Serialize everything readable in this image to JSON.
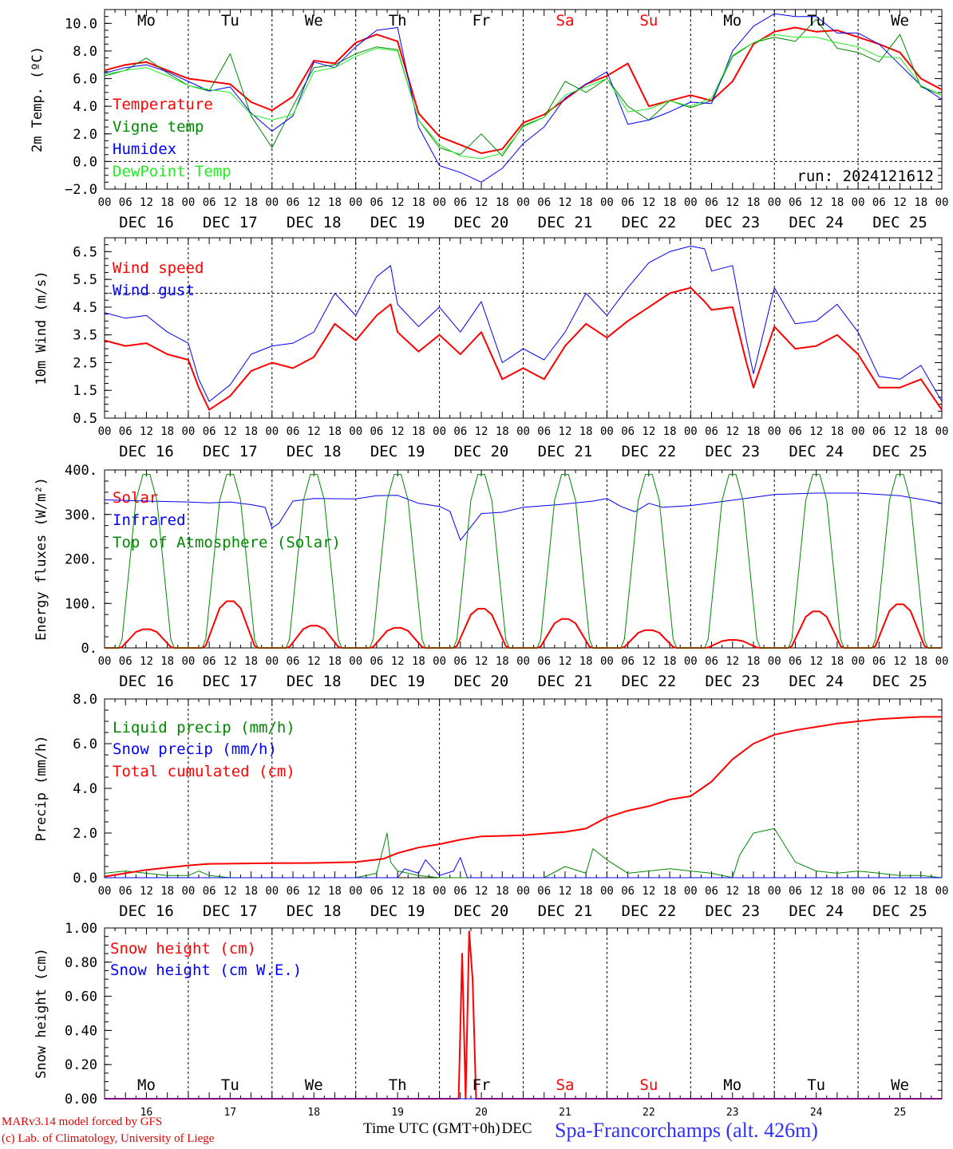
{
  "footer": {
    "credit_line1": "MARv3.14 model forced by GFS",
    "credit_line2": "(c) Lab. of Climatology, University of Liege",
    "x_title": "Time UTC (GMT+0h)",
    "x_title_suffix": "DEC",
    "station": "Spa-Francorchamps (alt. 426m)"
  },
  "days": {
    "weekday_labels": [
      "Mo",
      "Tu",
      "We",
      "Th",
      "Fr",
      "Sa",
      "Su",
      "Mo",
      "Tu",
      "We"
    ],
    "weekend_color": "#ff0000",
    "weekend_flags": [
      false,
      false,
      false,
      false,
      false,
      true,
      true,
      false,
      false,
      false
    ],
    "date_labels": [
      "DEC 16",
      "DEC 17",
      "DEC 18",
      "DEC 19",
      "DEC 20",
      "DEC 21",
      "DEC 22",
      "DEC 23",
      "DEC 24",
      "DEC 25"
    ],
    "day_numbers": [
      "16",
      "17",
      "18",
      "19",
      "20",
      "21",
      "22",
      "23",
      "24",
      "25"
    ],
    "hour_labels": [
      "00",
      "06",
      "12",
      "18"
    ],
    "hour_labels_end": "00"
  },
  "chart_data": [
    {
      "type": "line",
      "ylabel": "2m Temp. (ºC)",
      "ylim": [
        -2.0,
        11.0
      ],
      "yticks": [
        "10.0",
        "8.0",
        "6.0",
        "4.0",
        "2.0",
        "0.0",
        "−2.0"
      ],
      "ytick_values": [
        10,
        8,
        6,
        4,
        2,
        0,
        -2
      ],
      "xlim": [
        0,
        240
      ],
      "x_unit": "hours since DEC 16 00 UTC",
      "ref_line": 0,
      "annotation": "run: 2024121612",
      "series": [
        {
          "name": "Temperature",
          "color": "#ff0000",
          "width": 2,
          "x": [
            0,
            6,
            12,
            18,
            24,
            36,
            42,
            48,
            54,
            60,
            66,
            72,
            78,
            84,
            90,
            96,
            102,
            108,
            114,
            120,
            126,
            132,
            138,
            144,
            150,
            156,
            162,
            168,
            174,
            180,
            186,
            192,
            198,
            204,
            210,
            216,
            222,
            228,
            234,
            240
          ],
          "values": [
            6.6,
            7.0,
            7.2,
            6.6,
            6.0,
            5.6,
            4.3,
            3.7,
            4.7,
            7.3,
            7.1,
            8.6,
            9.2,
            8.7,
            3.5,
            1.8,
            1.2,
            0.6,
            0.9,
            2.8,
            3.4,
            4.5,
            5.6,
            6.2,
            7.1,
            4.0,
            4.4,
            4.8,
            4.4,
            5.8,
            8.5,
            9.4,
            9.7,
            9.4,
            9.5,
            9.0,
            8.5,
            7.9,
            6.0,
            5.2
          ]
        },
        {
          "name": "Vigne temp",
          "color": "#008800",
          "width": 1,
          "x": [
            0,
            6,
            12,
            18,
            24,
            30,
            36,
            42,
            48,
            54,
            60,
            66,
            72,
            78,
            84,
            90,
            96,
            102,
            108,
            114,
            120,
            126,
            132,
            138,
            144,
            150,
            156,
            162,
            168,
            174,
            180,
            186,
            192,
            198,
            204,
            210,
            216,
            222,
            228,
            234,
            240
          ],
          "values": [
            6.2,
            6.6,
            7.5,
            6.4,
            5.5,
            5.1,
            7.8,
            3.3,
            1.0,
            4.0,
            6.8,
            7.0,
            7.8,
            8.3,
            8.1,
            3.0,
            1.0,
            0.5,
            2.0,
            0.4,
            2.6,
            3.2,
            5.8,
            5.0,
            6.0,
            4.0,
            3.0,
            4.4,
            3.9,
            4.4,
            7.6,
            8.6,
            9.0,
            8.7,
            10.3,
            8.2,
            7.9,
            7.2,
            9.2,
            5.4,
            4.8
          ]
        },
        {
          "name": "Humidex",
          "color": "#0000ff",
          "width": 1,
          "x": [
            0,
            6,
            12,
            18,
            24,
            30,
            36,
            42,
            48,
            54,
            60,
            66,
            72,
            78,
            84,
            90,
            96,
            102,
            108,
            114,
            120,
            126,
            132,
            138,
            144,
            150,
            156,
            162,
            168,
            174,
            180,
            186,
            192,
            198,
            204,
            210,
            216,
            222,
            228,
            234,
            240
          ],
          "values": [
            6.4,
            6.8,
            7.0,
            6.5,
            5.8,
            5.1,
            5.4,
            3.5,
            2.2,
            3.3,
            7.2,
            6.8,
            8.3,
            9.5,
            9.7,
            2.5,
            -0.3,
            -0.8,
            -1.5,
            -0.5,
            1.3,
            2.5,
            4.6,
            5.6,
            6.5,
            2.7,
            3.0,
            3.6,
            4.3,
            4.2,
            8.0,
            9.8,
            10.7,
            10.5,
            10.5,
            9.3,
            9.3,
            8.5,
            7.0,
            5.5,
            4.5
          ]
        },
        {
          "name": "DewPoint Temp",
          "color": "#22ee22",
          "width": 1,
          "x": [
            0,
            6,
            12,
            18,
            24,
            30,
            36,
            42,
            48,
            54,
            60,
            66,
            72,
            78,
            84,
            90,
            96,
            102,
            108,
            114,
            120,
            126,
            132,
            138,
            144,
            150,
            156,
            162,
            168,
            174,
            180,
            186,
            192,
            198,
            204,
            210,
            216,
            222,
            228,
            234,
            240
          ],
          "values": [
            6.3,
            6.6,
            6.8,
            6.2,
            5.5,
            5.2,
            5.0,
            3.4,
            3.0,
            3.4,
            6.5,
            6.8,
            7.6,
            8.2,
            8.0,
            3.0,
            1.2,
            0.4,
            0.2,
            0.6,
            2.5,
            3.2,
            4.8,
            5.4,
            6.0,
            3.6,
            3.8,
            4.4,
            4.0,
            4.6,
            7.7,
            8.6,
            9.2,
            9.0,
            9.0,
            8.6,
            8.3,
            7.6,
            7.5,
            5.5,
            4.8
          ]
        }
      ]
    },
    {
      "type": "line",
      "ylabel": "10m Wind (m/s)",
      "ylim": [
        0.5,
        7.0
      ],
      "yticks": [
        "6.5",
        "5.5",
        "4.5",
        "3.5",
        "2.5",
        "1.5",
        "0.5"
      ],
      "ytick_values": [
        6.5,
        5.5,
        4.5,
        3.5,
        2.5,
        1.5,
        0.5
      ],
      "xlim": [
        0,
        240
      ],
      "ref_line": 5.0,
      "series": [
        {
          "name": "Wind speed",
          "color": "#ff0000",
          "width": 2,
          "x": [
            0,
            6,
            12,
            18,
            24,
            27,
            30,
            36,
            42,
            48,
            54,
            60,
            66,
            72,
            78,
            82,
            84,
            90,
            96,
            102,
            108,
            114,
            120,
            126,
            132,
            138,
            144,
            150,
            156,
            162,
            168,
            172,
            174,
            180,
            184,
            186,
            192,
            198,
            204,
            210,
            216,
            222,
            228,
            234,
            240
          ],
          "values": [
            3.3,
            3.1,
            3.2,
            2.8,
            2.6,
            1.6,
            0.8,
            1.3,
            2.2,
            2.5,
            2.3,
            2.7,
            3.9,
            3.3,
            4.2,
            4.6,
            3.6,
            2.9,
            3.5,
            2.8,
            3.6,
            1.9,
            2.3,
            1.9,
            3.1,
            3.9,
            3.4,
            4.0,
            4.5,
            5.0,
            5.2,
            4.7,
            4.4,
            4.5,
            2.5,
            1.6,
            3.8,
            3.0,
            3.1,
            3.5,
            2.8,
            1.6,
            1.6,
            1.9,
            0.8
          ]
        },
        {
          "name": "Wind gust",
          "color": "#0000ff",
          "width": 1,
          "x": [
            0,
            6,
            12,
            18,
            24,
            27,
            30,
            36,
            42,
            48,
            54,
            60,
            66,
            72,
            78,
            82,
            84,
            90,
            96,
            102,
            108,
            114,
            120,
            126,
            132,
            138,
            144,
            150,
            156,
            162,
            168,
            172,
            174,
            180,
            184,
            186,
            192,
            198,
            204,
            210,
            216,
            222,
            228,
            234,
            240
          ],
          "values": [
            4.3,
            4.1,
            4.2,
            3.6,
            3.2,
            1.9,
            1.1,
            1.7,
            2.8,
            3.1,
            3.2,
            3.6,
            5.0,
            4.2,
            5.6,
            6.0,
            4.6,
            3.8,
            4.5,
            3.6,
            4.7,
            2.5,
            3.0,
            2.6,
            3.6,
            5.0,
            4.2,
            5.2,
            6.1,
            6.5,
            6.7,
            6.6,
            5.8,
            6.0,
            3.3,
            2.1,
            5.2,
            3.9,
            4.0,
            4.6,
            3.6,
            2.0,
            1.9,
            2.4,
            1.1
          ]
        }
      ]
    },
    {
      "type": "line",
      "ylabel": "Energy fluxes (W/m²)",
      "ylim": [
        0,
        400
      ],
      "yticks": [
        "400.",
        "300.",
        "200.",
        "100.",
        "0."
      ],
      "ytick_values": [
        400,
        300,
        200,
        100,
        0
      ],
      "xlim": [
        0,
        240
      ],
      "daily_peak_hour": 12,
      "daily_half_width_hours": 8,
      "series": [
        {
          "name": "Solar",
          "color": "#ff0000",
          "width": 2,
          "daily_peaks": [
            42,
            105,
            50,
            45,
            88,
            65,
            40,
            18,
            82,
            98
          ]
        },
        {
          "name": "Infrared",
          "color": "#0000ff",
          "width": 1,
          "x": [
            0,
            12,
            24,
            30,
            36,
            42,
            46,
            48,
            50,
            54,
            60,
            72,
            78,
            84,
            90,
            96,
            99,
            102,
            108,
            114,
            120,
            130,
            140,
            144,
            148,
            152,
            156,
            160,
            168,
            180,
            192,
            204,
            216,
            228,
            234,
            240
          ],
          "values": [
            333,
            330,
            328,
            326,
            328,
            322,
            316,
            270,
            280,
            330,
            336,
            335,
            342,
            343,
            325,
            318,
            307,
            242,
            302,
            305,
            316,
            322,
            330,
            336,
            318,
            306,
            325,
            316,
            320,
            332,
            345,
            348,
            348,
            342,
            334,
            325
          ]
        },
        {
          "name": "Top of Atmosphere (Solar)",
          "color": "#008800",
          "width": 1,
          "daily_peaks": [
            390,
            390,
            390,
            390,
            390,
            390,
            390,
            390,
            390,
            390
          ]
        }
      ]
    },
    {
      "type": "line",
      "ylabel": "Precip (mm/h)",
      "ylim": [
        0,
        8.0
      ],
      "yticks": [
        "8.0",
        "6.0",
        "4.0",
        "2.0",
        "0.0"
      ],
      "ytick_values": [
        8,
        6,
        4,
        2,
        0
      ],
      "xlim": [
        0,
        240
      ],
      "series": [
        {
          "name": "Liquid precip (mm/h)",
          "color": "#008800",
          "width": 1,
          "x": [
            0,
            6,
            12,
            18,
            24,
            27,
            30,
            36,
            48,
            72,
            78,
            81,
            82,
            84,
            90,
            96,
            102,
            108,
            114,
            120,
            126,
            132,
            138,
            140,
            144,
            150,
            156,
            162,
            168,
            174,
            180,
            182,
            186,
            192,
            196,
            198,
            204,
            210,
            216,
            222,
            228,
            234,
            240
          ],
          "values": [
            0.2,
            0.3,
            0.2,
            0.1,
            0.1,
            0.3,
            0.1,
            0.0,
            0.0,
            0.0,
            0.2,
            2.0,
            0.7,
            0.3,
            0.1,
            0.0,
            0.0,
            0.0,
            0.0,
            0.0,
            0.0,
            0.5,
            0.2,
            1.3,
            0.8,
            0.2,
            0.3,
            0.4,
            0.3,
            0.2,
            0.0,
            1.0,
            2.0,
            2.2,
            1.2,
            0.7,
            0.3,
            0.2,
            0.3,
            0.2,
            0.1,
            0.1,
            0.0
          ]
        },
        {
          "name": "Snow precip (mm/h)",
          "color": "#0000ff",
          "width": 1,
          "x": [
            0,
            84,
            86,
            90,
            92,
            96,
            100,
            102,
            104,
            110,
            240
          ],
          "values": [
            0,
            0,
            0.4,
            0.2,
            0.8,
            0.1,
            0.3,
            0.9,
            0.0,
            0.0,
            0.0
          ]
        },
        {
          "name": "Total cumulated (cm)",
          "color": "#ff0000",
          "width": 2,
          "x": [
            0,
            6,
            12,
            18,
            24,
            30,
            36,
            48,
            60,
            72,
            80,
            84,
            90,
            96,
            102,
            108,
            120,
            132,
            138,
            144,
            150,
            156,
            162,
            168,
            174,
            180,
            186,
            192,
            198,
            204,
            210,
            216,
            222,
            228,
            234,
            240
          ],
          "values": [
            0.05,
            0.2,
            0.35,
            0.45,
            0.55,
            0.62,
            0.63,
            0.65,
            0.66,
            0.7,
            0.85,
            1.1,
            1.35,
            1.5,
            1.7,
            1.85,
            1.9,
            2.05,
            2.2,
            2.7,
            3.0,
            3.2,
            3.5,
            3.65,
            4.3,
            5.3,
            6.0,
            6.4,
            6.6,
            6.75,
            6.9,
            7.0,
            7.1,
            7.15,
            7.2,
            7.2
          ]
        }
      ]
    },
    {
      "type": "line",
      "ylabel": "Snow height (cm)",
      "ylim": [
        0,
        1.0
      ],
      "yticks": [
        "1.00",
        "0.80",
        "0.60",
        "0.40",
        "0.20",
        "0.00"
      ],
      "ytick_values": [
        1.0,
        0.8,
        0.6,
        0.4,
        0.2,
        0.0
      ],
      "xlim": [
        0,
        240
      ],
      "series": [
        {
          "name": "Snow height (cm)",
          "color": "#ff0000",
          "width": 2,
          "x": [
            0,
            101.5,
            102.5,
            103.5,
            104.5,
            105.5,
            106.5,
            107.5,
            240
          ],
          "values": [
            0,
            0,
            0.85,
            0,
            0.98,
            0.7,
            0,
            0,
            0
          ]
        },
        {
          "name": "Snow height (cm W.E.)",
          "color": "#0000ff",
          "width": 1,
          "x": [
            0,
            240
          ],
          "values": [
            0,
            0
          ]
        }
      ]
    }
  ]
}
